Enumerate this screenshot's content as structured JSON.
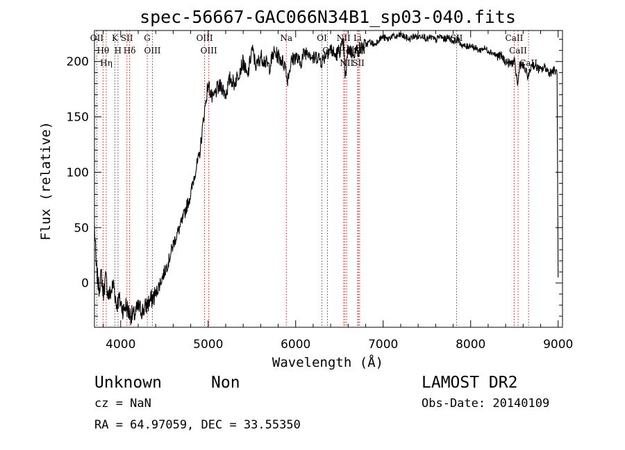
{
  "chart_data": {
    "type": "line",
    "title": "spec-56667-GAC066N34B1_sp03-040.fits",
    "xlabel": "Wavelength (Å)",
    "ylabel": "Flux (relative)",
    "xlim": [
      3700,
      9050
    ],
    "ylim": [
      -40,
      228
    ],
    "xticks": [
      4000,
      5000,
      6000,
      7000,
      8000,
      9000
    ],
    "yticks": [
      0,
      50,
      100,
      150,
      200
    ],
    "grid": false,
    "series": [
      {
        "name": "",
        "x": [
          3700,
          3720,
          3750,
          3780,
          3800,
          3830,
          3860,
          3890,
          3920,
          3950,
          3980,
          4000,
          4030,
          4060,
          4100,
          4150,
          4200,
          4250,
          4300,
          4350,
          4400,
          4450,
          4500,
          4550,
          4600,
          4650,
          4700,
          4750,
          4800,
          4850,
          4900,
          4950,
          5000,
          5050,
          5100,
          5150,
          5200,
          5250,
          5300,
          5350,
          5400,
          5450,
          5500,
          5550,
          5600,
          5650,
          5700,
          5750,
          5800,
          5850,
          5890,
          5900,
          5950,
          6000,
          6050,
          6100,
          6150,
          6200,
          6250,
          6300,
          6350,
          6400,
          6450,
          6500,
          6550,
          6565,
          6600,
          6650,
          6700,
          6750,
          6800,
          6850,
          6900,
          6950,
          7000,
          7050,
          7100,
          7150,
          7200,
          7250,
          7300,
          7350,
          7400,
          7450,
          7500,
          7550,
          7600,
          7650,
          7700,
          7750,
          7800,
          7850,
          7900,
          7950,
          8000,
          8050,
          8100,
          8150,
          8200,
          8250,
          8300,
          8350,
          8400,
          8450,
          8500,
          8540,
          8560,
          8600,
          8660,
          8700,
          8750,
          8800,
          8850,
          8900,
          8950,
          8990,
          9000
        ],
        "values": [
          52,
          15,
          -5,
          8,
          -10,
          5,
          -12,
          -8,
          0,
          -20,
          -15,
          -18,
          -25,
          -20,
          -28,
          -30,
          -22,
          -25,
          -20,
          -15,
          -10,
          0,
          10,
          20,
          35,
          45,
          55,
          68,
          80,
          100,
          115,
          150,
          180,
          165,
          175,
          178,
          170,
          185,
          180,
          190,
          200,
          185,
          212,
          195,
          205,
          200,
          195,
          208,
          205,
          200,
          195,
          182,
          200,
          205,
          198,
          208,
          210,
          202,
          205,
          200,
          208,
          212,
          205,
          210,
          215,
          182,
          212,
          208,
          210,
          212,
          215,
          218,
          215,
          220,
          222,
          220,
          223,
          222,
          224,
          222,
          220,
          223,
          222,
          224,
          220,
          222,
          219,
          223,
          220,
          222,
          218,
          220,
          215,
          213,
          215,
          212,
          210,
          212,
          210,
          208,
          205,
          205,
          200,
          198,
          200,
          178,
          198,
          196,
          186,
          198,
          195,
          192,
          195,
          190,
          192,
          190,
          5
        ]
      }
    ],
    "lines": [
      {
        "w": 3727,
        "label": "OII"
      },
      {
        "w": 3798,
        "label": "Hθ"
      },
      {
        "w": 3835,
        "label": "Hη"
      },
      {
        "w": 3934,
        "label": "K"
      },
      {
        "w": 3969,
        "label": "H"
      },
      {
        "w": 4071,
        "label": "SII"
      },
      {
        "w": 4102,
        "label": "Hδ"
      },
      {
        "w": 4304,
        "label": "G"
      },
      {
        "w": 4363,
        "label": "OIII"
      },
      {
        "w": 4959,
        "label": "OIII"
      },
      {
        "w": 5007,
        "label": "OIII"
      },
      {
        "w": 5893,
        "label": "Na"
      },
      {
        "w": 6300,
        "label": "OI"
      },
      {
        "w": 6363,
        "label": "OI"
      },
      {
        "w": 6548,
        "label": "NII"
      },
      {
        "w": 6563,
        "label": "Hα"
      },
      {
        "w": 6583,
        "label": "NII"
      },
      {
        "w": 6708,
        "label": "Li"
      },
      {
        "w": 6717,
        "label": "SII"
      },
      {
        "w": 6731,
        "label": "SII"
      },
      {
        "w": 7840,
        "label": "SII"
      },
      {
        "w": 8498,
        "label": "CaII"
      },
      {
        "w": 8542,
        "label": "CaII"
      },
      {
        "w": 8662,
        "label": "CaII"
      }
    ]
  },
  "info": {
    "class_label": "Unknown",
    "subclass_label": "Non",
    "survey": "LAMOST DR2",
    "redshift_text": "cz = NaN",
    "obs_date_text": "Obs-Date: 20140109",
    "coords_text": "RA =  64.97059, DEC =  33.55350"
  },
  "colors": {
    "spectrum": "#000000",
    "marker": "#b22222",
    "background": "#ffffff"
  }
}
